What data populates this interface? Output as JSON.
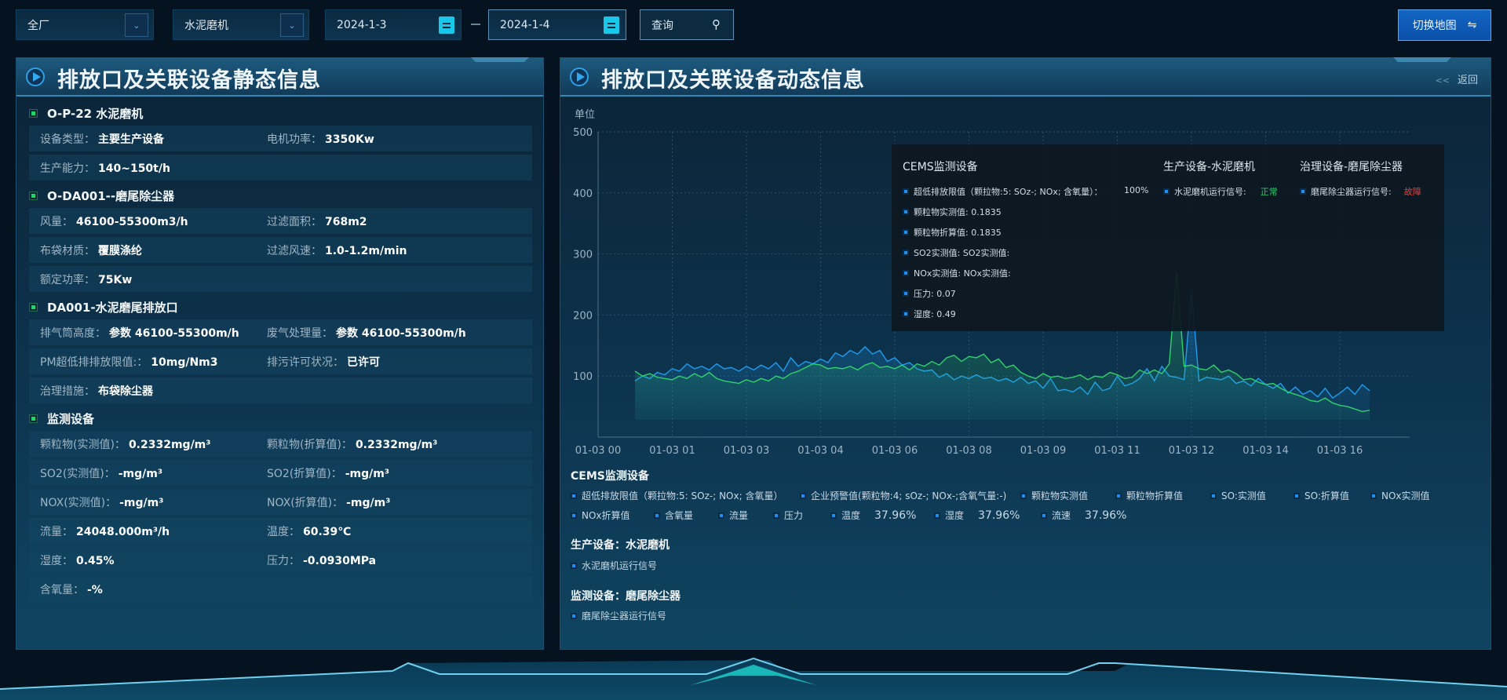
{
  "toolbar": {
    "plant": "全厂",
    "device": "水泥磨机",
    "start_date": "2024-1-3",
    "end_date": "2024-1-4",
    "query": "查询",
    "switch_map": "切换地图",
    "switch_icon": "⇋",
    "chevron": "⌄"
  },
  "left": {
    "title": "排放口及关联设备静态信息",
    "sections": [
      {
        "title": "O-P-22 水泥磨机",
        "rows": [
          [
            [
              "设备类型：",
              "主要生产设备"
            ],
            [
              "电机功率：",
              "3350Kw"
            ]
          ],
          [
            [
              "生产能力：",
              "140~150t/h"
            ]
          ]
        ]
      },
      {
        "title": "O-DA001--磨尾除尘器",
        "rows": [
          [
            [
              "风量：",
              "46100-55300m3/h"
            ],
            [
              "过滤面积：",
              "768m2"
            ]
          ],
          [
            [
              "布袋材质：",
              "覆膜涤纶"
            ],
            [
              "过滤风速：",
              "1.0-1.2m/min"
            ]
          ],
          [
            [
              "额定功率：",
              "75Kw"
            ]
          ]
        ]
      },
      {
        "title": "DA001-水泥磨尾排放口",
        "rows": [
          [
            [
              "排气筒高度：",
              "参数 46100-55300m/h"
            ],
            [
              "废气处理量：",
              "参数 46100-55300m/h"
            ]
          ],
          [
            [
              "PM超低排排放限值:：",
              "10mg/Nm3"
            ],
            [
              "排污许可状况：",
              "已许可"
            ]
          ],
          [
            [
              "治理措施：",
              "布袋除尘器"
            ]
          ]
        ]
      },
      {
        "title": "监测设备",
        "rows": [
          [
            [
              "颗粒物(实测值)：",
              "0.2332mg/m³"
            ],
            [
              "颗粒物(折算值)：",
              "0.2332mg/m³"
            ]
          ],
          [
            [
              "SO2(实测值)：",
              "-mg/m³"
            ],
            [
              "SO2(折算值)：",
              "-mg/m³"
            ]
          ],
          [
            [
              "NOX(实测值)：",
              "-mg/m³"
            ],
            [
              "NOX(折算值)：",
              "-mg/m³"
            ]
          ],
          [
            [
              "流量：",
              "24048.000m³/h"
            ],
            [
              "温度：",
              "60.39℃"
            ]
          ],
          [
            [
              "湿度：",
              "0.45%"
            ],
            [
              "压力：",
              "-0.0930MPa"
            ]
          ],
          [
            [
              "含氧量：",
              "-%"
            ]
          ]
        ]
      }
    ]
  },
  "right": {
    "title": "排放口及关联设备动态信息",
    "back": "返回",
    "back_icon": "<<"
  },
  "tooltip": {
    "cems_title": "CEMS监测设备",
    "prod_title": "生产设备-水泥磨机",
    "treat_title": "治理设备-磨尾除尘器",
    "cems_items": [
      "超低排放限值（颗拉物:5: SOz-; NOx; 含氧量）：",
      "颗粒物实测值: 0.1835",
      "颗粒物折算值: 0.1835",
      "SO2实测值: SO2实测值:",
      "NOx实测值: NOx实测值:",
      "压力: 0.07",
      "湿度: 0.49"
    ],
    "cems_first_value": "100%",
    "prod_label": "水泥磨机运行信号:",
    "prod_value": "正常",
    "prod_color": "#28c76f",
    "treat_label": "磨尾除尘器运行信号:",
    "treat_value": "故障",
    "treat_color": "#e5413c"
  },
  "legend": {
    "cems_title": "CEMS监测设备",
    "row1": [
      "超低排放限值（颗拉物:5: SOz-; NOx; 含氧量）",
      "企业预警值(颗粒物:4; sOz-; NOx-;含氧气量:-)",
      "颗粒物实测值",
      "颗粒物折算值",
      "SO:实测值",
      "SO:折算值",
      "NOx实测值"
    ],
    "row2": [
      [
        "NOx折算值",
        ""
      ],
      [
        "含氧量",
        ""
      ],
      [
        "流量",
        ""
      ],
      [
        "压力",
        ""
      ],
      [
        "温度",
        "37.96%"
      ],
      [
        "湿度",
        "37.96%"
      ],
      [
        "流速",
        "37.96%"
      ]
    ],
    "prod_title": "生产设备：水泥磨机",
    "prod_item": "水泥磨机运行信号",
    "mon_title": "监测设备：磨尾除尘器",
    "mon_item": "磨尾除尘器运行信号"
  },
  "chart_data": {
    "type": "area",
    "ylabel": "单位",
    "ylim": [
      0,
      500
    ],
    "yticks": [
      100,
      200,
      300,
      400,
      500
    ],
    "grid": true,
    "xticks": [
      "01-03 00",
      "01-03 01",
      "01-03 03",
      "01-03 04",
      "01-03 06",
      "01-03 08",
      "01-03 09",
      "01-03 11",
      "01-03 12",
      "01-03 14",
      "01-03 16"
    ],
    "series": [
      {
        "color": "#1e9df0",
        "values": [
          92,
          100,
          96,
          106,
          102,
          112,
          108,
          120,
          112,
          116,
          110,
          120,
          112,
          114,
          108,
          116,
          110,
          118,
          112,
          122,
          108,
          130,
          116,
          124,
          120,
          128,
          122,
          138,
          132,
          142,
          136,
          148,
          136,
          142,
          124,
          130,
          118,
          122,
          112,
          108,
          110,
          98,
          104,
          94,
          100,
          96,
          102,
          96,
          98,
          92,
          96,
          90,
          98,
          88,
          92,
          80,
          96,
          76,
          78,
          74,
          82,
          70,
          90,
          76,
          80,
          100,
          84,
          88,
          96,
          112,
          92,
          116,
          100,
          98,
          94,
          240,
          92,
          98,
          96,
          94,
          100,
          88,
          92,
          84,
          96,
          86,
          80,
          88,
          72,
          82,
          70,
          76,
          66,
          80,
          64,
          72,
          82,
          70,
          86,
          76
        ]
      },
      {
        "color": "#2fd36a",
        "values": [
          108,
          100,
          104,
          98,
          96,
          94,
          100,
          96,
          104,
          98,
          106,
          96,
          92,
          90,
          88,
          94,
          90,
          96,
          92,
          100,
          96,
          104,
          108,
          114,
          120,
          118,
          112,
          114,
          112,
          116,
          110,
          118,
          122,
          114,
          116,
          112,
          118,
          110,
          120,
          116,
          124,
          118,
          130,
          134,
          124,
          132,
          130,
          136,
          122,
          128,
          114,
          118,
          106,
          100,
          96,
          104,
          98,
          100,
          96,
          98,
          102,
          94,
          100,
          98,
          106,
          102,
          96,
          98,
          110,
          104,
          110,
          104,
          120,
          270,
          116,
          118,
          112,
          110,
          118,
          106,
          110,
          104,
          94,
          96,
          90,
          86,
          88,
          80,
          74,
          70,
          66,
          60,
          58,
          64,
          56,
          52,
          50,
          46,
          42,
          44
        ]
      }
    ]
  }
}
